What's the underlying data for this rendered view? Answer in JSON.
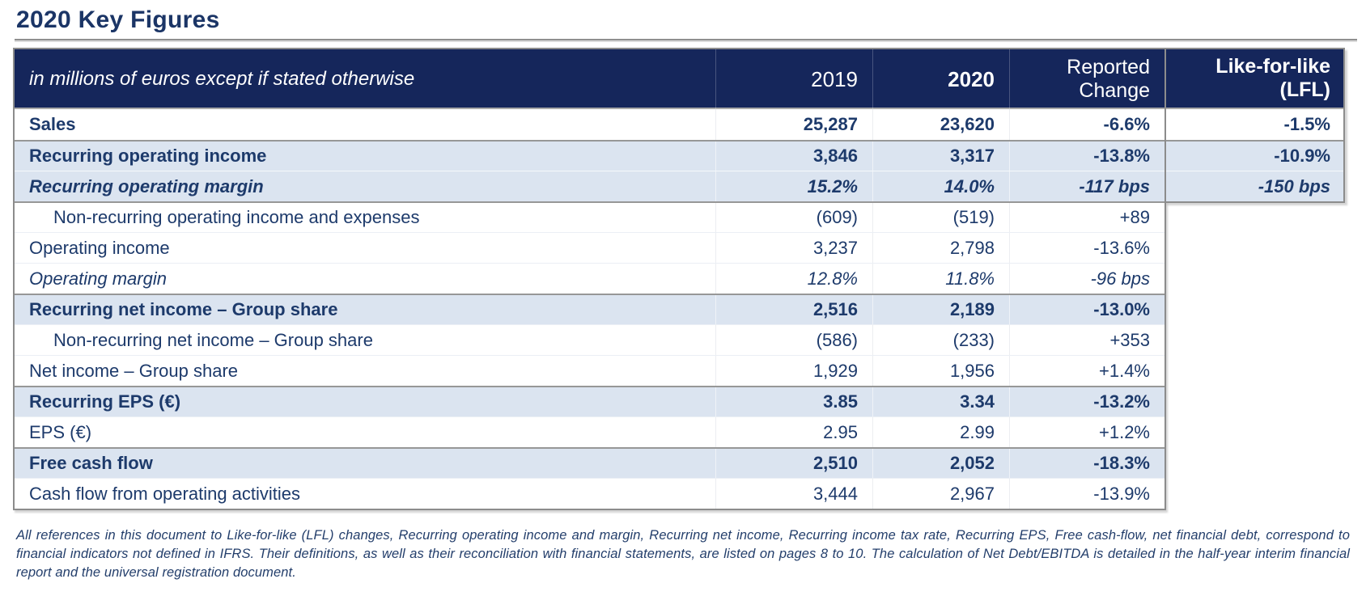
{
  "page": {
    "title": "2020 Key Figures",
    "footnote": "All references in this document to Like-for-like (LFL) changes, Recurring operating income and margin, Recurring net income, Recurring income tax rate, Recurring EPS, Free cash-flow, net financial debt, correspond to financial indicators not defined in IFRS. Their definitions, as well as their reconciliation with financial statements, are listed on pages 8 to 10. The calculation of Net Debt/EBITDA is detailed in the half-year interim financial report and the universal registration document."
  },
  "colors": {
    "header_navy": "#15265b",
    "row_blue": "#dbe4f0",
    "text_navy": "#1d3a6b",
    "border_gray": "#8c8c8c"
  },
  "table": {
    "header": {
      "label": "in millions of euros except if stated otherwise",
      "col_2019": "2019",
      "col_2020": "2020",
      "reported_line1": "Reported",
      "reported_line2": "Change",
      "lfl_line1": "Like-for-like",
      "lfl_line2": "(LFL)"
    },
    "rows": [
      {
        "label": "Sales",
        "v2019": "25,287",
        "v2020": "23,620",
        "change": "-6.6%",
        "lfl": "-1.5%"
      },
      {
        "label": "Recurring operating income",
        "v2019": "3,846",
        "v2020": "3,317",
        "change": "-13.8%",
        "lfl": "-10.9%"
      },
      {
        "label": "Recurring operating margin",
        "v2019": "15.2%",
        "v2020": "14.0%",
        "change": "-117 bps",
        "lfl": "-150 bps"
      },
      {
        "label": "Non-recurring operating income and expenses",
        "v2019": "(609)",
        "v2020": "(519)",
        "change": "+89"
      },
      {
        "label": "Operating income",
        "v2019": "3,237",
        "v2020": "2,798",
        "change": "-13.6%"
      },
      {
        "label": "Operating margin",
        "v2019": "12.8%",
        "v2020": "11.8%",
        "change": "-96 bps"
      },
      {
        "label": "Recurring net income – Group share",
        "v2019": "2,516",
        "v2020": "2,189",
        "change": "-13.0%"
      },
      {
        "label": "Non-recurring net income – Group share",
        "v2019": "(586)",
        "v2020": "(233)",
        "change": "+353"
      },
      {
        "label": "Net income – Group share",
        "v2019": "1,929",
        "v2020": "1,956",
        "change": "+1.4%"
      },
      {
        "label": "Recurring EPS (€)",
        "v2019": "3.85",
        "v2020": "3.34",
        "change": "-13.2%"
      },
      {
        "label": "EPS (€)",
        "v2019": "2.95",
        "v2020": "2.99",
        "change": "+1.2%"
      },
      {
        "label": "Free cash flow",
        "v2019": "2,510",
        "v2020": "2,052",
        "change": "-18.3%"
      },
      {
        "label": "Cash flow from operating activities",
        "v2019": "3,444",
        "v2020": "2,967",
        "change": "-13.9%"
      }
    ]
  }
}
